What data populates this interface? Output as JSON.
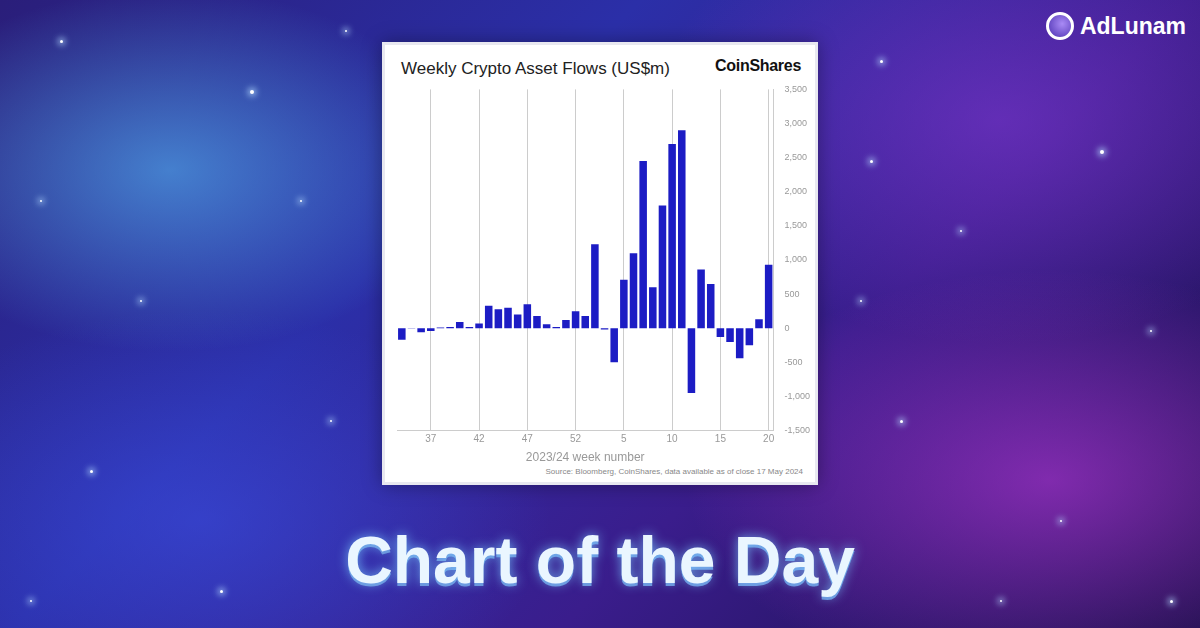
{
  "header": {
    "brand": "AdLunam"
  },
  "footer": {
    "title": "Chart of the Day"
  },
  "chart_data": {
    "type": "bar",
    "title": "Weekly Crypto Asset Flows (US$m)",
    "brand": "CoinShares",
    "x_label": "2023/24 week number",
    "source": "Source: Bloomberg, CoinShares, data available as of close 17 May 2024",
    "categories": [
      null,
      null,
      null,
      "37",
      null,
      null,
      null,
      null,
      "42",
      null,
      null,
      null,
      null,
      "47",
      null,
      null,
      null,
      null,
      "52",
      null,
      null,
      null,
      null,
      "5",
      null,
      null,
      null,
      null,
      "10",
      null,
      null,
      null,
      null,
      "15",
      null,
      null,
      null,
      null,
      "20"
    ],
    "values": [
      -170,
      5,
      -60,
      -40,
      10,
      20,
      90,
      20,
      70,
      330,
      280,
      300,
      200,
      350,
      180,
      60,
      20,
      120,
      250,
      180,
      1230,
      -20,
      -500,
      710,
      1100,
      2450,
      600,
      1800,
      2700,
      2900,
      -950,
      860,
      650,
      -130,
      -200,
      -440,
      -250,
      130,
      930
    ],
    "color": "#1c1cc4",
    "ylim": [
      -1500,
      3500
    ],
    "yticks": [
      {
        "value": -1500,
        "label": "-1,500"
      },
      {
        "value": -1000,
        "label": "-1,000"
      },
      -500,
      0,
      500,
      {
        "value": 1000,
        "label": "1,000"
      },
      {
        "value": 1500,
        "label": "1,500"
      },
      {
        "value": 2000,
        "label": "2,000"
      },
      {
        "value": 2500,
        "label": "2,500"
      },
      {
        "value": 3000,
        "label": "3,000"
      },
      {
        "value": 3500,
        "label": "3,500"
      }
    ],
    "grid": true
  }
}
